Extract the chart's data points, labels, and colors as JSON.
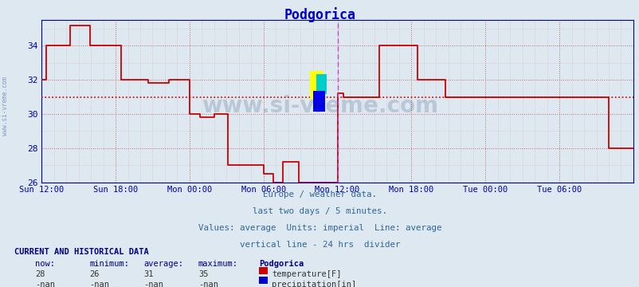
{
  "title": "Podgorica",
  "title_color": "#0000cc",
  "bg_color": "#dde8f0",
  "plot_bg_color": "#dde8f0",
  "line_color": "#cc0000",
  "avg_line_color": "#cc0000",
  "avg_line_value": 31.0,
  "ylim": [
    26,
    35.5
  ],
  "yticks": [
    26,
    28,
    30,
    32,
    34
  ],
  "grid_minor_color": "#ddaaaa",
  "grid_major_color": "#cc6666",
  "vline_color": "#cc44cc",
  "vline_x": 0.5,
  "tick_color": "#0000aa",
  "text_color": "#336699",
  "watermark": "www.si-vreme.com",
  "watermark_color": "#1a3a6a",
  "watermark_alpha": 0.18,
  "footer_lines": [
    "Europe / weather data.",
    "last two days / 5 minutes.",
    "Values: average  Units: imperial  Line: average",
    "vertical line - 24 hrs  divider"
  ],
  "current_data_title": "CURRENT AND HISTORICAL DATA",
  "table_headers": [
    "now:",
    "minimum:",
    "average:",
    "maximum:",
    "Podgorica"
  ],
  "table_row1_vals": [
    "28",
    "26",
    "31",
    "35"
  ],
  "table_row1_label": "temperature[F]",
  "table_row2_vals": [
    "-nan",
    "-nan",
    "-nan",
    "-nan"
  ],
  "table_row2_label": "precipitation[in]",
  "temp_swatch_color": "#cc0000",
  "precip_swatch_color": "#0000cc",
  "x_tick_labels": [
    "Sun 12:00",
    "Sun 18:00",
    "Mon 00:00",
    "Mon 06:00",
    "Mon 12:00",
    "Mon 18:00",
    "Tue 00:00",
    "Tue 06:00"
  ],
  "x_tick_positions": [
    0.0,
    0.125,
    0.25,
    0.375,
    0.5,
    0.625,
    0.75,
    0.875
  ],
  "temp_data_x": [
    0.0,
    0.008,
    0.008,
    0.048,
    0.048,
    0.082,
    0.082,
    0.135,
    0.135,
    0.18,
    0.18,
    0.215,
    0.215,
    0.25,
    0.25,
    0.268,
    0.268,
    0.292,
    0.292,
    0.315,
    0.315,
    0.375,
    0.375,
    0.392,
    0.392,
    0.408,
    0.408,
    0.435,
    0.435,
    0.5,
    0.5,
    0.51,
    0.51,
    0.57,
    0.57,
    0.635,
    0.635,
    0.682,
    0.682,
    0.72,
    0.72,
    0.755,
    0.755,
    0.762,
    0.762,
    0.87,
    0.87,
    0.958,
    0.958,
    1.0
  ],
  "temp_data_y": [
    32.0,
    32.0,
    34.0,
    34.0,
    35.2,
    35.2,
    34.0,
    34.0,
    32.0,
    32.0,
    31.8,
    31.8,
    32.0,
    32.0,
    30.0,
    30.0,
    29.8,
    29.8,
    30.0,
    30.0,
    27.0,
    27.0,
    26.5,
    26.5,
    26.0,
    26.0,
    27.2,
    27.2,
    26.0,
    26.0,
    31.2,
    31.2,
    31.0,
    31.0,
    34.0,
    34.0,
    32.0,
    32.0,
    31.0,
    31.0,
    31.0,
    31.0,
    31.0,
    31.0,
    31.0,
    31.0,
    31.0,
    31.0,
    28.0,
    28.0
  ],
  "icon_yellow": "#ffff00",
  "icon_cyan": "#00cccc",
  "icon_blue": "#0000ee"
}
